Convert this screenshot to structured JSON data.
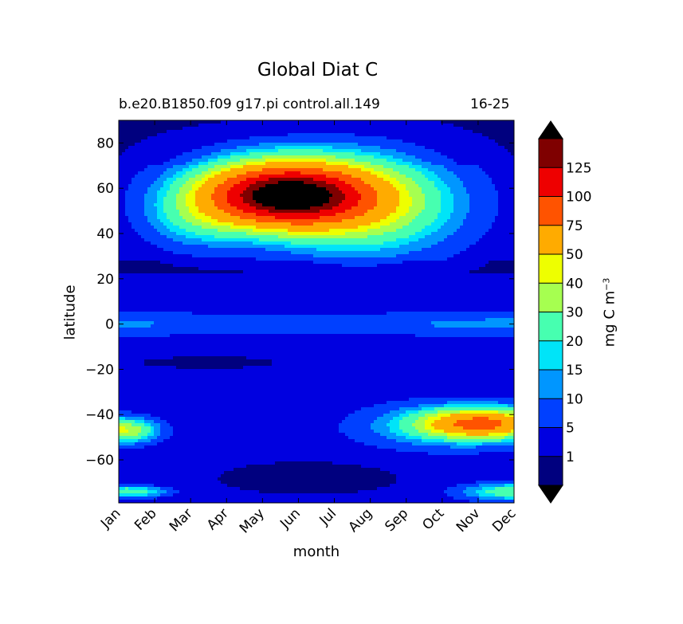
{
  "chart_data": {
    "type": "heatmap",
    "title": "Global Diat C",
    "subtitle_left": "b.e20.B1850.f09 g17.pi control.all.149",
    "subtitle_right": "16-25",
    "xlabel": "month",
    "ylabel": "latitude",
    "x_categories": [
      "Jan",
      "Feb",
      "Mar",
      "Apr",
      "May",
      "Jun",
      "Jul",
      "Aug",
      "Sep",
      "Oct",
      "Nov",
      "Dec"
    ],
    "yticks": [
      80,
      60,
      40,
      20,
      0,
      -20,
      -40,
      -60
    ],
    "ylim": [
      -79,
      90
    ],
    "colorbar": {
      "label": "mg C m",
      "label_exponent": "−3",
      "levels": [
        1,
        5,
        10,
        15,
        20,
        30,
        40,
        50,
        75,
        100,
        125
      ],
      "colors": [
        "#00007f",
        "#0000e0",
        "#0040ff",
        "#0096ff",
        "#00e4f8",
        "#47ffb0",
        "#a6ff50",
        "#eeff00",
        "#ffab00",
        "#ff5300",
        "#ee0000",
        "#7f0000"
      ],
      "extend": "both",
      "under_color": "#000000",
      "over_color": "#000000"
    },
    "features": [
      {
        "month": 5.5,
        "lat": 55,
        "value": 150,
        "note": "peak ~May-Jun near 55-65N"
      },
      {
        "month": 11.0,
        "lat": -44,
        "value": 60
      },
      {
        "month": 1.2,
        "lat": -47,
        "value": 40
      }
    ]
  }
}
